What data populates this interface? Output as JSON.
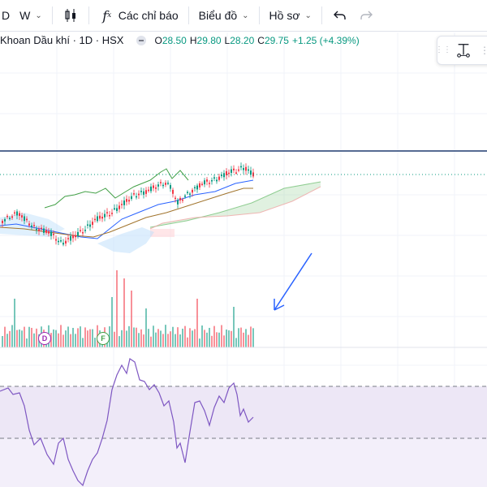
{
  "toolbar": {
    "interval_d": "D",
    "interval_w": "W",
    "indicators_label": "Các chỉ báo",
    "chart_type_label": "Biểu đồ",
    "profile_label": "Hồ sơ"
  },
  "legend": {
    "symbol": "Khoan Dầu khí · 1D · HSX",
    "open_key": "O",
    "open": "28.50",
    "high_key": "H",
    "high": "29.80",
    "low_key": "L",
    "low": "28.20",
    "close_key": "C",
    "close": "29.75",
    "change": "+1.25 (+4.39%)"
  },
  "markers": {
    "dividend": "D",
    "financial": "F"
  },
  "colors": {
    "up": "#089981",
    "down": "#f23645",
    "rsi_line": "#7e57c2",
    "rsi_band": "#ede7f6",
    "arrow": "#2962ff",
    "horizontal_line": "#1e3a6e"
  },
  "icons": [
    "candles-icon",
    "fx-icon",
    "undo-icon",
    "redo-icon",
    "measure-icon",
    "dots-icon"
  ]
}
